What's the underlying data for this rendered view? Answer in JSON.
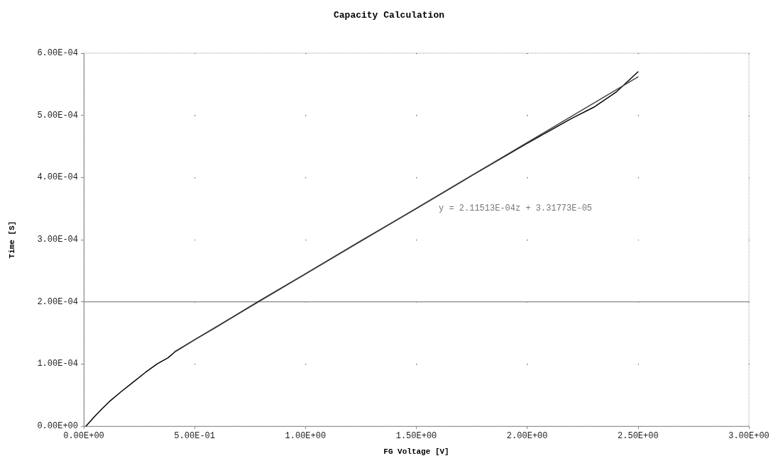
{
  "chart_data": {
    "type": "line",
    "title": "Capacity Calculation",
    "xlabel": "FG Voltage [V]",
    "ylabel": "Time [S]",
    "annotations": [
      "y = 2.11513E-04z + 3.31773E-05"
    ],
    "xlim": [
      0,
      3
    ],
    "ylim": [
      0,
      0.0006
    ],
    "xticks": [
      {
        "value": 0,
        "label": "0.00E+00"
      },
      {
        "value": 0.5,
        "label": "5.00E-01"
      },
      {
        "value": 1,
        "label": "1.00E+00"
      },
      {
        "value": 1.5,
        "label": "1.50E+00"
      },
      {
        "value": 2,
        "label": "2.00E+00"
      },
      {
        "value": 2.5,
        "label": "2.50E+00"
      },
      {
        "value": 3,
        "label": "3.00E+00"
      }
    ],
    "yticks": [
      {
        "value": 0,
        "label": "0.00E+00"
      },
      {
        "value": 0.0001,
        "label": "1.00E-04"
      },
      {
        "value": 0.0002,
        "label": "2.00E-04"
      },
      {
        "value": 0.0003,
        "label": "3.00E-04"
      },
      {
        "value": 0.0004,
        "label": "4.00E-04"
      },
      {
        "value": 0.0005,
        "label": "5.00E-04"
      },
      {
        "value": 0.0006,
        "label": "6.00E-04"
      }
    ],
    "grid": true,
    "marker": "none",
    "line_style": "solid",
    "ref_lines": [
      {
        "axis": "y",
        "value": 0.0002,
        "label": null,
        "color": "#888888"
      }
    ],
    "series": [
      {
        "color": "#000000",
        "x": [
          0.01,
          0.05,
          0.08,
          0.12,
          0.167,
          0.22,
          0.28,
          0.33,
          0.38,
          0.413,
          0.5,
          0.6,
          0.785,
          1.0,
          1.25,
          1.5,
          1.75,
          2.0,
          2.1,
          2.2,
          2.3,
          2.4,
          2.5
        ],
        "values": [
          0,
          1.6e-05,
          2.7e-05,
          4.1e-05,
          5.5e-05,
          7e-05,
          8.7e-05,
          0.0001,
          0.00011,
          0.00012,
          0.000139,
          0.00016,
          0.0002,
          0.000245,
          0.000298,
          0.00035,
          0.000403,
          0.000455,
          0.000475,
          0.000495,
          0.000513,
          0.000537,
          0.00057
        ]
      },
      {
        "color": "#444444",
        "x": [
          0.41,
          2.5
        ],
        "values": [
          0.00012,
          0.000562
        ]
      }
    ]
  }
}
